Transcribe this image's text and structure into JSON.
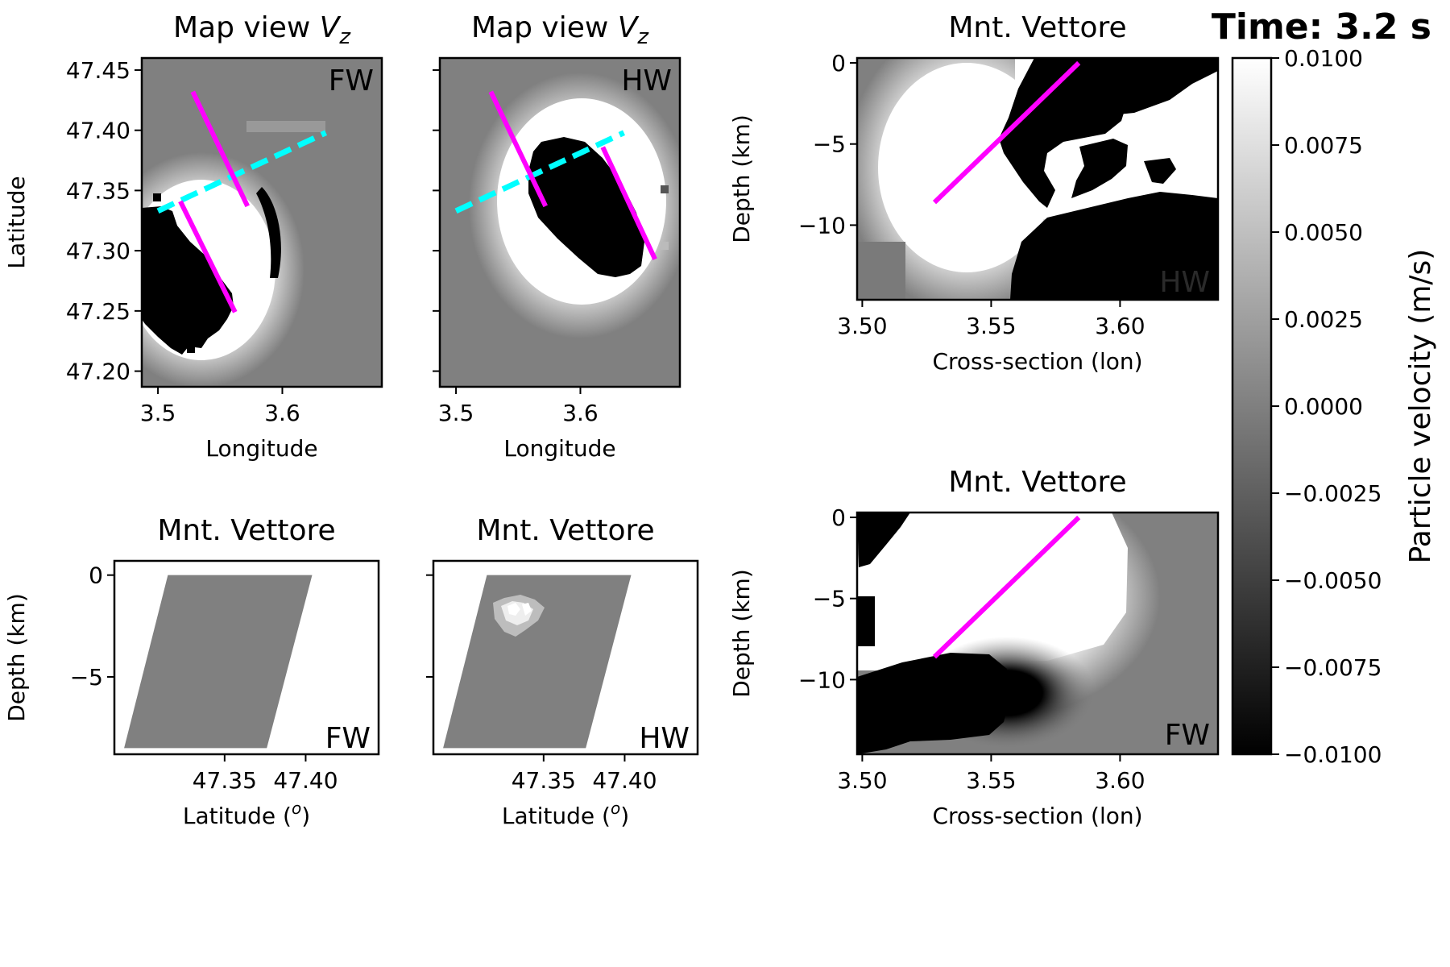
{
  "figure": {
    "time_label": "Time: 3.2 s"
  },
  "colors": {
    "fault": "#ff00ff",
    "profile": "#00ffff",
    "background": "#808080"
  },
  "chart_data": [
    {
      "id": "map_fw",
      "type": "heatmap",
      "title_main": "Map view ",
      "title_var": "V",
      "title_sub": "z",
      "xlabel": "Longitude",
      "ylabel": "Latitude",
      "tag": "FW",
      "xlim": [
        3.487,
        3.68
      ],
      "ylim": [
        47.187,
        47.46
      ],
      "xticks": [
        3.5,
        3.6
      ],
      "xtick_labels": [
        "3.5",
        "3.6"
      ],
      "yticks": [
        47.2,
        47.25,
        47.3,
        47.35,
        47.4,
        47.45
      ],
      "ytick_labels": [
        "47.20",
        "47.25",
        "47.30",
        "47.35",
        "47.40",
        "47.45"
      ],
      "fault_line": [
        [
          3.528,
          47.432
        ],
        [
          3.572,
          47.337
        ]
      ],
      "fault_line_2": [
        [
          3.518,
          47.341
        ],
        [
          3.562,
          47.249
        ]
      ],
      "profile_line": [
        [
          3.5,
          47.333
        ],
        [
          3.635,
          47.398
        ]
      ]
    },
    {
      "id": "map_hw",
      "type": "heatmap",
      "title_main": "Map view ",
      "title_var": "V",
      "title_sub": "z",
      "xlabel": "Longitude",
      "ylabel": "",
      "tag": "HW",
      "xlim": [
        3.487,
        3.68
      ],
      "ylim": [
        47.187,
        47.46
      ],
      "xticks": [
        3.5,
        3.6
      ],
      "xtick_labels": [
        "3.5",
        "3.6"
      ],
      "yticks": [
        47.2,
        47.25,
        47.3,
        47.35,
        47.4,
        47.45
      ],
      "ytick_labels": [],
      "fault_line": [
        [
          3.528,
          47.432
        ],
        [
          3.572,
          47.337
        ]
      ],
      "fault_line_2": [
        [
          3.618,
          47.386
        ],
        [
          3.66,
          47.293
        ]
      ],
      "profile_line": [
        [
          3.5,
          47.333
        ],
        [
          3.635,
          47.398
        ]
      ]
    },
    {
      "id": "xsec_top",
      "type": "heatmap",
      "title": "Mnt. Vettore",
      "xlabel": "Cross-section (lon)",
      "ylabel": "Depth (km)",
      "tag": "HW",
      "xlim": [
        3.498,
        3.638
      ],
      "ylim": [
        -14.6,
        0.3
      ],
      "xticks": [
        3.5,
        3.55,
        3.6
      ],
      "xtick_labels": [
        "3.50",
        "3.55",
        "3.60"
      ],
      "yticks": [
        -10,
        -5,
        0
      ],
      "ytick_labels": [
        "−10",
        "−5",
        "0"
      ],
      "fault_line": [
        [
          3.528,
          -8.6
        ],
        [
          3.584,
          0
        ]
      ]
    },
    {
      "id": "xsec_bottom",
      "type": "heatmap",
      "title": "Mnt. Vettore",
      "xlabel": "Cross-section (lon)",
      "ylabel": "Depth (km)",
      "tag": "FW",
      "xlim": [
        3.498,
        3.638
      ],
      "ylim": [
        -14.6,
        0.3
      ],
      "xticks": [
        3.5,
        3.55,
        3.6
      ],
      "xtick_labels": [
        "3.50",
        "3.55",
        "3.60"
      ],
      "yticks": [
        -10,
        -5,
        0
      ],
      "ytick_labels": [
        "−10",
        "−5",
        "0"
      ],
      "fault_line": [
        [
          3.528,
          -8.6
        ],
        [
          3.584,
          0
        ]
      ]
    },
    {
      "id": "fault_fw",
      "type": "heatmap",
      "title": "Mnt. Vettore",
      "xlabel_main": "Latitude (",
      "xlabel_sup": "o",
      "xlabel_end": ")",
      "ylabel": "Depth (km)",
      "tag": "FW",
      "xlim": [
        47.282,
        47.445
      ],
      "ylim": [
        -8.8,
        0.7
      ],
      "xticks": [
        47.35,
        47.4
      ],
      "xtick_labels": [
        "47.35",
        "47.40"
      ],
      "yticks": [
        -5,
        0
      ],
      "ytick_labels": [
        "−5",
        "0"
      ],
      "fault_polygon": [
        [
          47.315,
          0
        ],
        [
          47.404,
          0
        ],
        [
          47.376,
          -8.5
        ],
        [
          47.288,
          -8.5
        ]
      ]
    },
    {
      "id": "fault_hw",
      "type": "heatmap",
      "title": "Mnt. Vettore",
      "xlabel_main": "Latitude (",
      "xlabel_sup": "o",
      "xlabel_end": ")",
      "ylabel": "",
      "tag": "HW",
      "xlim": [
        47.282,
        47.445
      ],
      "ylim": [
        -8.8,
        0.7
      ],
      "xticks": [
        47.35,
        47.4
      ],
      "xtick_labels": [
        "47.35",
        "47.40"
      ],
      "yticks": [
        -5,
        0
      ],
      "ytick_labels": [],
      "fault_polygon": [
        [
          47.315,
          0
        ],
        [
          47.404,
          0
        ],
        [
          47.376,
          -8.5
        ],
        [
          47.288,
          -8.5
        ]
      ]
    },
    {
      "id": "colorbar",
      "type": "colorbar",
      "label": "Particle velocity (m/s)",
      "range": [
        -0.01,
        0.01
      ],
      "ticks": [
        0.01,
        0.0075,
        0.005,
        0.0025,
        0,
        -0.0025,
        -0.005,
        -0.0075,
        -0.01
      ],
      "tick_labels": [
        "0.0100",
        "0.0075",
        "0.0050",
        "0.0025",
        "0.0000",
        "−0.0025",
        "−0.0050",
        "−0.0075",
        "−0.0100"
      ]
    }
  ]
}
